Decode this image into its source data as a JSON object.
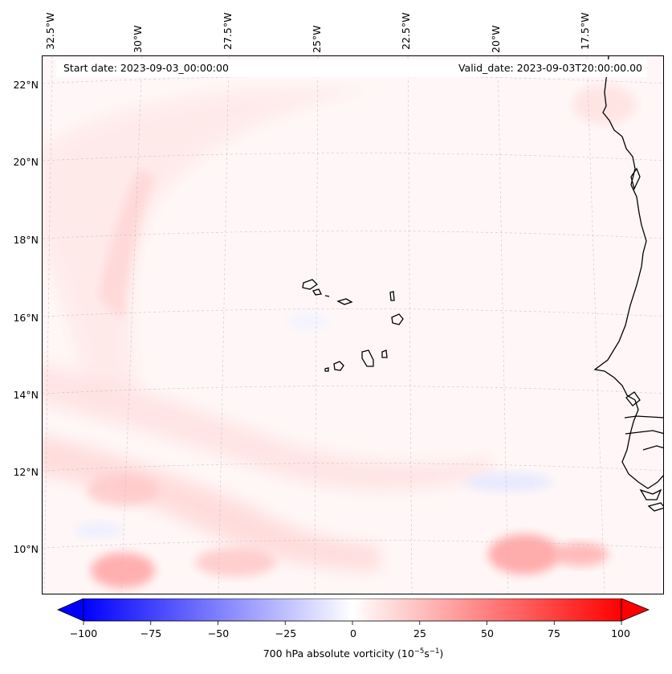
{
  "title_left": "Start date: 2023-09-03_00:00:00",
  "title_right": "Valid_date: 2023-09-03T20:00:00.00",
  "longitude_labels": [
    "32.5°W",
    "30°W",
    "27.5°W",
    "25°W",
    "22.5°W",
    "20°W",
    "17.5°W"
  ],
  "latitude_labels": [
    "22°N",
    "20°N",
    "18°N",
    "16°N",
    "14°N",
    "12°N",
    "10°N"
  ],
  "colorbar": {
    "variable": "700 hPa absolute vorticity",
    "units_base": "(10",
    "units_exp1": "−5",
    "units_mid": "s",
    "units_exp2": "−1",
    "units_close": ")",
    "ticks": [
      "−100",
      "−75",
      "−50",
      "−25",
      "0",
      "25",
      "50",
      "75",
      "100"
    ],
    "min": -100,
    "max": 100,
    "colors": {
      "negative": "#0000ff",
      "neutral": "#ffffff",
      "positive": "#ff0000"
    }
  },
  "colors": {
    "coastline": "#000000",
    "gridline": "#bbbbbb",
    "background_field": "#fff7f7"
  }
}
